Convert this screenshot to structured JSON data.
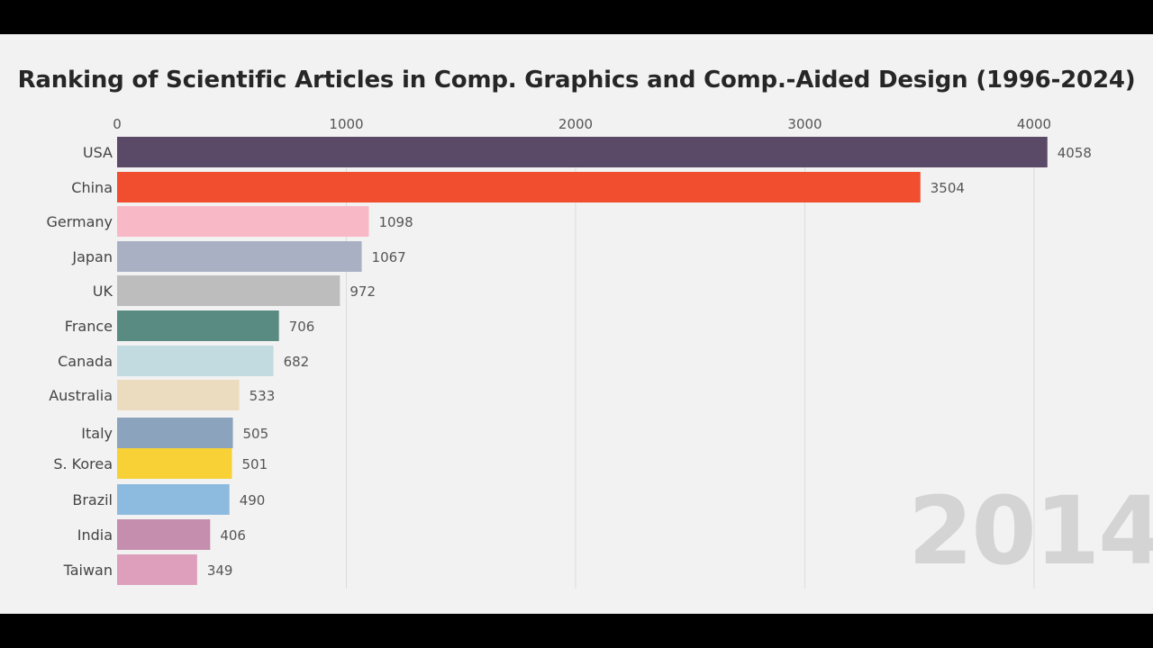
{
  "chart_data": {
    "type": "bar",
    "orientation": "horizontal",
    "title": "Ranking of Scientific Articles in Comp. Graphics and Comp.-Aided Design (1996-2024)",
    "year": "2014",
    "xlim": [
      0,
      4200
    ],
    "x_ticks": [
      0,
      1000,
      2000,
      3000,
      4000
    ],
    "grid": true,
    "categories": [
      "USA",
      "China",
      "Germany",
      "Japan",
      "UK",
      "France",
      "Canada",
      "Australia",
      "Italy",
      "S. Korea",
      "Brazil",
      "India",
      "Taiwan"
    ],
    "values": [
      4058,
      3504,
      1098,
      1067,
      972,
      706,
      682,
      533,
      505,
      501,
      490,
      406,
      349
    ],
    "colors": [
      "#5b4a67",
      "#f04e2e",
      "#f9b8c5",
      "#a9b0c3",
      "#bdbdbd",
      "#5a8b82",
      "#c2dbe0",
      "#ecdcbf",
      "#8ca3be",
      "#f7d135",
      "#8dbbe0",
      "#c58eae",
      "#dd9fbc"
    ]
  }
}
